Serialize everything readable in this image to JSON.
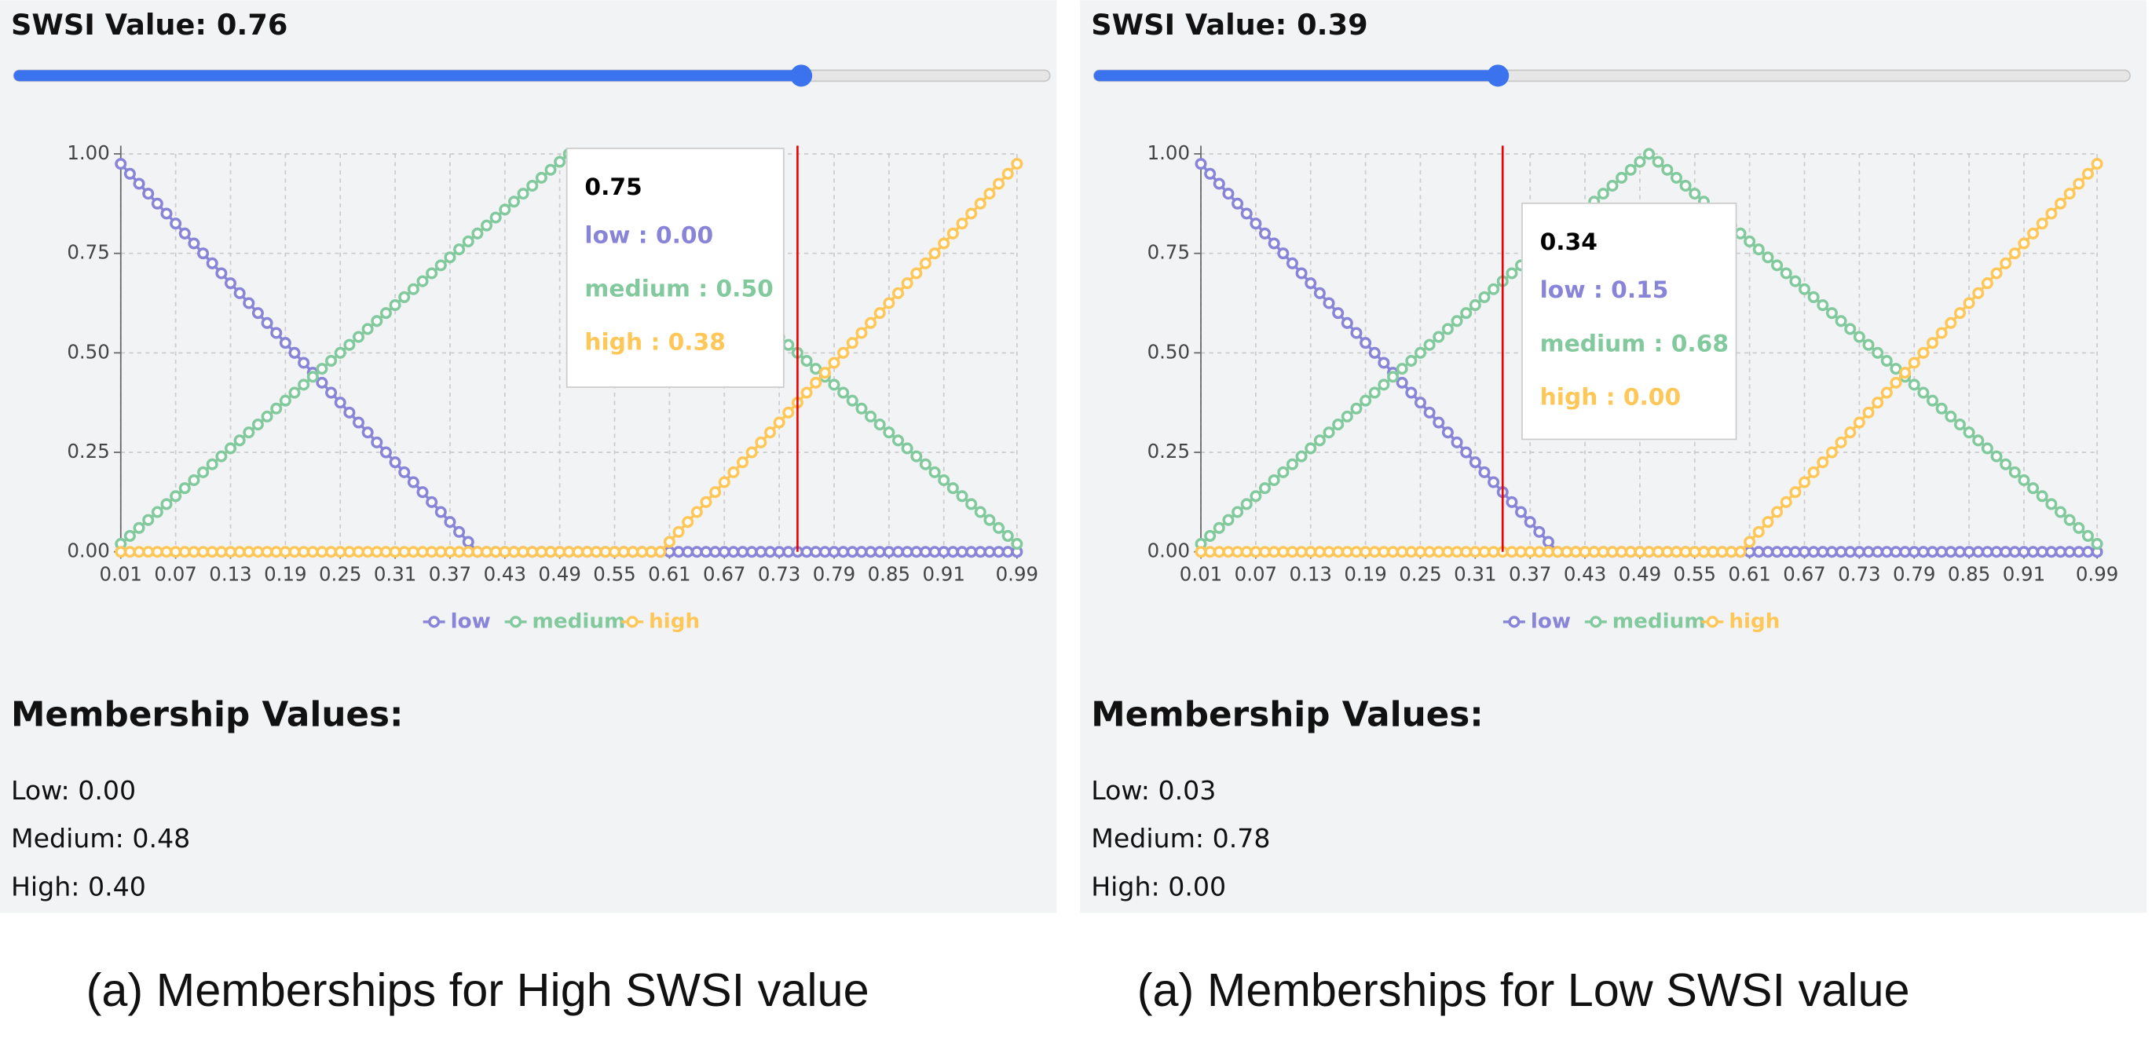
{
  "panels": [
    {
      "slider_label": "SWSI Value: 0.76",
      "slider_value": 0.76,
      "slider_lim": [
        0,
        1
      ],
      "membership_heading": "Membership Values:",
      "membership_lines": [
        "Low: 0.00",
        "Medium: 0.48",
        "High: 0.40"
      ],
      "caption": "(a) Memberships for High SWSI value"
    },
    {
      "slider_label": "SWSI Value: 0.39",
      "slider_value": 0.39,
      "slider_lim": [
        0,
        1
      ],
      "membership_heading": "Membership Values:",
      "membership_lines": [
        "Low: 0.03",
        "Medium: 0.78",
        "High: 0.00"
      ],
      "caption": "(a) Memberships for Low SWSI value"
    }
  ],
  "chart_data": [
    {
      "type": "line",
      "x": [
        0.01,
        0.02,
        0.03,
        0.04,
        0.05,
        0.06,
        0.07,
        0.08,
        0.09,
        0.1,
        0.11,
        0.12,
        0.13,
        0.14,
        0.15,
        0.16,
        0.17,
        0.18,
        0.19,
        0.2,
        0.21,
        0.22,
        0.23,
        0.24,
        0.25,
        0.26,
        0.27,
        0.28,
        0.29,
        0.3,
        0.31,
        0.32,
        0.33,
        0.34,
        0.35,
        0.36,
        0.37,
        0.38,
        0.39,
        0.4,
        0.41,
        0.42,
        0.43,
        0.44,
        0.45,
        0.46,
        0.47,
        0.48,
        0.49,
        0.5,
        0.51,
        0.52,
        0.53,
        0.54,
        0.55,
        0.56,
        0.57,
        0.58,
        0.59,
        0.6,
        0.61,
        0.62,
        0.63,
        0.64,
        0.65,
        0.66,
        0.67,
        0.68,
        0.69,
        0.7,
        0.71,
        0.72,
        0.73,
        0.74,
        0.75,
        0.76,
        0.77,
        0.78,
        0.79,
        0.8,
        0.81,
        0.82,
        0.83,
        0.84,
        0.85,
        0.86,
        0.87,
        0.88,
        0.89,
        0.9,
        0.91,
        0.92,
        0.93,
        0.94,
        0.95,
        0.96,
        0.97,
        0.98,
        0.99
      ],
      "series": [
        {
          "name": "low",
          "color": "#8884d8",
          "values": [
            0.975,
            0.95,
            0.925,
            0.9,
            0.875,
            0.85,
            0.825,
            0.8,
            0.775,
            0.75,
            0.725,
            0.7,
            0.675,
            0.65,
            0.625,
            0.6,
            0.575,
            0.55,
            0.525,
            0.5,
            0.475,
            0.45,
            0.425,
            0.4,
            0.375,
            0.35,
            0.325,
            0.3,
            0.275,
            0.25,
            0.225,
            0.2,
            0.175,
            0.15,
            0.125,
            0.1,
            0.075,
            0.05,
            0.025,
            0,
            0,
            0,
            0,
            0,
            0,
            0,
            0,
            0,
            0,
            0,
            0,
            0,
            0,
            0,
            0,
            0,
            0,
            0,
            0,
            0,
            0,
            0,
            0,
            0,
            0,
            0,
            0,
            0,
            0,
            0,
            0,
            0,
            0,
            0,
            0,
            0,
            0,
            0,
            0,
            0,
            0,
            0,
            0,
            0,
            0,
            0,
            0,
            0,
            0,
            0,
            0,
            0,
            0,
            0,
            0,
            0,
            0,
            0,
            0
          ]
        },
        {
          "name": "medium",
          "color": "#82ca9d",
          "values": [
            0.02,
            0.04,
            0.06,
            0.08,
            0.1,
            0.12,
            0.14,
            0.16,
            0.18,
            0.2,
            0.22,
            0.24,
            0.26,
            0.28,
            0.3,
            0.32,
            0.34,
            0.36,
            0.38,
            0.4,
            0.42,
            0.44,
            0.46,
            0.48,
            0.5,
            0.52,
            0.54,
            0.56,
            0.58,
            0.6,
            0.62,
            0.64,
            0.66,
            0.68,
            0.7,
            0.72,
            0.74,
            0.76,
            0.78,
            0.8,
            0.82,
            0.84,
            0.86,
            0.88,
            0.9,
            0.92,
            0.94,
            0.96,
            0.98,
            1,
            0.98,
            0.96,
            0.94,
            0.92,
            0.9,
            0.88,
            0.86,
            0.84,
            0.82,
            0.8,
            0.78,
            0.76,
            0.74,
            0.72,
            0.7,
            0.68,
            0.66,
            0.64,
            0.62,
            0.6,
            0.58,
            0.56,
            0.54,
            0.52,
            0.5,
            0.48,
            0.46,
            0.44,
            0.42,
            0.4,
            0.38,
            0.36,
            0.34,
            0.32,
            0.3,
            0.28,
            0.26,
            0.24,
            0.22,
            0.2,
            0.18,
            0.16,
            0.14,
            0.12,
            0.1,
            0.08,
            0.06,
            0.04,
            0.02
          ]
        },
        {
          "name": "high",
          "color": "#ffc658",
          "values": [
            0,
            0,
            0,
            0,
            0,
            0,
            0,
            0,
            0,
            0,
            0,
            0,
            0,
            0,
            0,
            0,
            0,
            0,
            0,
            0,
            0,
            0,
            0,
            0,
            0,
            0,
            0,
            0,
            0,
            0,
            0,
            0,
            0,
            0,
            0,
            0,
            0,
            0,
            0,
            0,
            0,
            0,
            0,
            0,
            0,
            0,
            0,
            0,
            0,
            0,
            0,
            0,
            0,
            0,
            0,
            0,
            0,
            0,
            0,
            0,
            0.025,
            0.05,
            0.075,
            0.1,
            0.125,
            0.15,
            0.175,
            0.2,
            0.225,
            0.25,
            0.275,
            0.3,
            0.325,
            0.35,
            0.375,
            0.4,
            0.425,
            0.45,
            0.475,
            0.5,
            0.525,
            0.55,
            0.575,
            0.6,
            0.625,
            0.65,
            0.675,
            0.7,
            0.725,
            0.75,
            0.775,
            0.8,
            0.825,
            0.85,
            0.875,
            0.9,
            0.925,
            0.95,
            0.975
          ]
        }
      ],
      "xlim": [
        0.01,
        0.99
      ],
      "xticks": [
        0.01,
        0.07,
        0.13,
        0.19,
        0.25,
        0.31,
        0.37,
        0.43,
        0.49,
        0.55,
        0.61,
        0.67,
        0.73,
        0.79,
        0.85,
        0.91,
        0.99
      ],
      "ylim": [
        0,
        1
      ],
      "yticks": [
        {
          "value": 0,
          "label": "0.00"
        },
        {
          "value": 0.25,
          "label": "0.25"
        },
        {
          "value": 0.5,
          "label": "0.50"
        },
        {
          "value": 0.75,
          "label": "0.75"
        },
        {
          "value": 1,
          "label": "1.00"
        }
      ],
      "grid": true,
      "legend": "bottom",
      "tooltip": {
        "x": 0.75,
        "items": [
          "low : 0.00",
          "medium : 0.50",
          "high : 0.38"
        ]
      }
    },
    {
      "type": "line",
      "x": [
        0.01,
        0.02,
        0.03,
        0.04,
        0.05,
        0.06,
        0.07,
        0.08,
        0.09,
        0.1,
        0.11,
        0.12,
        0.13,
        0.14,
        0.15,
        0.16,
        0.17,
        0.18,
        0.19,
        0.2,
        0.21,
        0.22,
        0.23,
        0.24,
        0.25,
        0.26,
        0.27,
        0.28,
        0.29,
        0.3,
        0.31,
        0.32,
        0.33,
        0.34,
        0.35,
        0.36,
        0.37,
        0.38,
        0.39,
        0.4,
        0.41,
        0.42,
        0.43,
        0.44,
        0.45,
        0.46,
        0.47,
        0.48,
        0.49,
        0.5,
        0.51,
        0.52,
        0.53,
        0.54,
        0.55,
        0.56,
        0.57,
        0.58,
        0.59,
        0.6,
        0.61,
        0.62,
        0.63,
        0.64,
        0.65,
        0.66,
        0.67,
        0.68,
        0.69,
        0.7,
        0.71,
        0.72,
        0.73,
        0.74,
        0.75,
        0.76,
        0.77,
        0.78,
        0.79,
        0.8,
        0.81,
        0.82,
        0.83,
        0.84,
        0.85,
        0.86,
        0.87,
        0.88,
        0.89,
        0.9,
        0.91,
        0.92,
        0.93,
        0.94,
        0.95,
        0.96,
        0.97,
        0.98,
        0.99
      ],
      "series": [
        {
          "name": "low",
          "color": "#8884d8",
          "values": [
            0.975,
            0.95,
            0.925,
            0.9,
            0.875,
            0.85,
            0.825,
            0.8,
            0.775,
            0.75,
            0.725,
            0.7,
            0.675,
            0.65,
            0.625,
            0.6,
            0.575,
            0.55,
            0.525,
            0.5,
            0.475,
            0.45,
            0.425,
            0.4,
            0.375,
            0.35,
            0.325,
            0.3,
            0.275,
            0.25,
            0.225,
            0.2,
            0.175,
            0.15,
            0.125,
            0.1,
            0.075,
            0.05,
            0.025,
            0,
            0,
            0,
            0,
            0,
            0,
            0,
            0,
            0,
            0,
            0,
            0,
            0,
            0,
            0,
            0,
            0,
            0,
            0,
            0,
            0,
            0,
            0,
            0,
            0,
            0,
            0,
            0,
            0,
            0,
            0,
            0,
            0,
            0,
            0,
            0,
            0,
            0,
            0,
            0,
            0,
            0,
            0,
            0,
            0,
            0,
            0,
            0,
            0,
            0,
            0,
            0,
            0,
            0,
            0,
            0,
            0,
            0,
            0,
            0
          ]
        },
        {
          "name": "medium",
          "color": "#82ca9d",
          "values": [
            0.02,
            0.04,
            0.06,
            0.08,
            0.1,
            0.12,
            0.14,
            0.16,
            0.18,
            0.2,
            0.22,
            0.24,
            0.26,
            0.28,
            0.3,
            0.32,
            0.34,
            0.36,
            0.38,
            0.4,
            0.42,
            0.44,
            0.46,
            0.48,
            0.5,
            0.52,
            0.54,
            0.56,
            0.58,
            0.6,
            0.62,
            0.64,
            0.66,
            0.68,
            0.7,
            0.72,
            0.74,
            0.76,
            0.78,
            0.8,
            0.82,
            0.84,
            0.86,
            0.88,
            0.9,
            0.92,
            0.94,
            0.96,
            0.98,
            1,
            0.98,
            0.96,
            0.94,
            0.92,
            0.9,
            0.88,
            0.86,
            0.84,
            0.82,
            0.8,
            0.78,
            0.76,
            0.74,
            0.72,
            0.7,
            0.68,
            0.66,
            0.64,
            0.62,
            0.6,
            0.58,
            0.56,
            0.54,
            0.52,
            0.5,
            0.48,
            0.46,
            0.44,
            0.42,
            0.4,
            0.38,
            0.36,
            0.34,
            0.32,
            0.3,
            0.28,
            0.26,
            0.24,
            0.22,
            0.2,
            0.18,
            0.16,
            0.14,
            0.12,
            0.1,
            0.08,
            0.06,
            0.04,
            0.02
          ]
        },
        {
          "name": "high",
          "color": "#ffc658",
          "values": [
            0,
            0,
            0,
            0,
            0,
            0,
            0,
            0,
            0,
            0,
            0,
            0,
            0,
            0,
            0,
            0,
            0,
            0,
            0,
            0,
            0,
            0,
            0,
            0,
            0,
            0,
            0,
            0,
            0,
            0,
            0,
            0,
            0,
            0,
            0,
            0,
            0,
            0,
            0,
            0,
            0,
            0,
            0,
            0,
            0,
            0,
            0,
            0,
            0,
            0,
            0,
            0,
            0,
            0,
            0,
            0,
            0,
            0,
            0,
            0,
            0.025,
            0.05,
            0.075,
            0.1,
            0.125,
            0.15,
            0.175,
            0.2,
            0.225,
            0.25,
            0.275,
            0.3,
            0.325,
            0.35,
            0.375,
            0.4,
            0.425,
            0.45,
            0.475,
            0.5,
            0.525,
            0.55,
            0.575,
            0.6,
            0.625,
            0.65,
            0.675,
            0.7,
            0.725,
            0.75,
            0.775,
            0.8,
            0.825,
            0.85,
            0.875,
            0.9,
            0.925,
            0.95,
            0.975
          ]
        }
      ],
      "xlim": [
        0.01,
        0.99
      ],
      "xticks": [
        0.01,
        0.07,
        0.13,
        0.19,
        0.25,
        0.31,
        0.37,
        0.43,
        0.49,
        0.55,
        0.61,
        0.67,
        0.73,
        0.79,
        0.85,
        0.91,
        0.99
      ],
      "ylim": [
        0,
        1
      ],
      "yticks": [
        {
          "value": 0,
          "label": "0.00"
        },
        {
          "value": 0.25,
          "label": "0.25"
        },
        {
          "value": 0.5,
          "label": "0.50"
        },
        {
          "value": 0.75,
          "label": "0.75"
        },
        {
          "value": 1,
          "label": "1.00"
        }
      ],
      "grid": true,
      "legend": "bottom",
      "tooltip": {
        "x": 0.34,
        "items": [
          "low : 0.15",
          "medium : 0.68",
          "high : 0.00"
        ]
      }
    }
  ]
}
